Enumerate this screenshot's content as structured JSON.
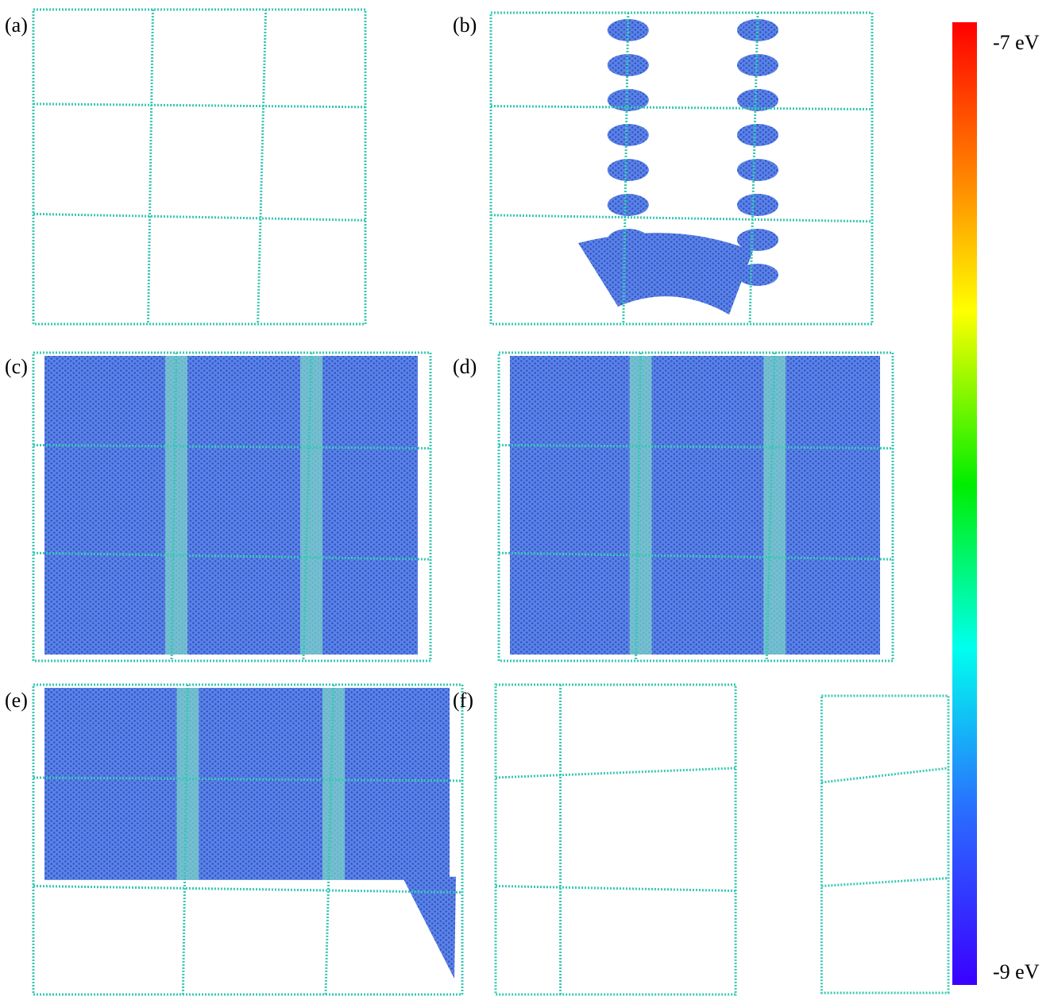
{
  "panels": [
    {
      "label": "(a)"
    },
    {
      "label": "(b)"
    },
    {
      "label": "(c)"
    },
    {
      "label": "(d)"
    },
    {
      "label": "(e)"
    },
    {
      "label": "(f)"
    }
  ],
  "colorbar": {
    "top_label": "-7 eV",
    "bottom_label": "-9 eV"
  }
}
